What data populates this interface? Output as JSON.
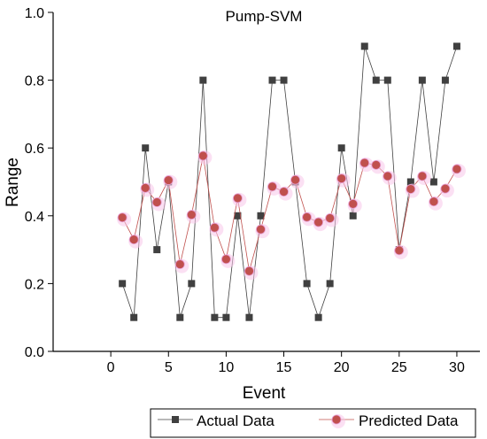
{
  "chart_data": {
    "type": "line",
    "title": "Pump-SVM",
    "xlabel": "Event",
    "ylabel": "Range",
    "xlim": [
      -5,
      32
    ],
    "ylim": [
      0.0,
      1.0
    ],
    "x_ticks": [
      0,
      5,
      10,
      15,
      20,
      25,
      30
    ],
    "y_ticks": [
      "0.0",
      "0.2",
      "0.4",
      "0.6",
      "0.8",
      "1.0"
    ],
    "y_tick_values": [
      0.0,
      0.2,
      0.4,
      0.6,
      0.8,
      1.0
    ],
    "grid": false,
    "legend_position": "bottom",
    "x": [
      1,
      2,
      3,
      4,
      5,
      6,
      7,
      8,
      9,
      10,
      11,
      12,
      13,
      14,
      15,
      16,
      17,
      18,
      19,
      20,
      21,
      22,
      23,
      24,
      25,
      26,
      27,
      28,
      29,
      30
    ],
    "series": [
      {
        "name": "Actual Data",
        "marker": "square",
        "color": "#404040",
        "values": [
          0.2,
          0.1,
          0.6,
          0.3,
          0.5,
          0.1,
          0.2,
          0.8,
          0.1,
          0.1,
          0.4,
          0.1,
          0.4,
          0.8,
          0.8,
          0.5,
          0.2,
          0.1,
          0.2,
          0.6,
          0.4,
          0.9,
          0.8,
          0.8,
          0.3,
          0.5,
          0.8,
          0.5,
          0.8,
          0.9
        ]
      },
      {
        "name": "Predicted Data",
        "marker": "circle",
        "color": "#c0504d",
        "values": [
          0.395,
          0.33,
          0.482,
          0.44,
          0.505,
          0.257,
          0.403,
          0.577,
          0.365,
          0.272,
          0.452,
          0.237,
          0.36,
          0.486,
          0.471,
          0.506,
          0.396,
          0.381,
          0.393,
          0.51,
          0.435,
          0.556,
          0.55,
          0.517,
          0.298,
          0.479,
          0.517,
          0.442,
          0.48,
          0.538
        ]
      }
    ]
  }
}
